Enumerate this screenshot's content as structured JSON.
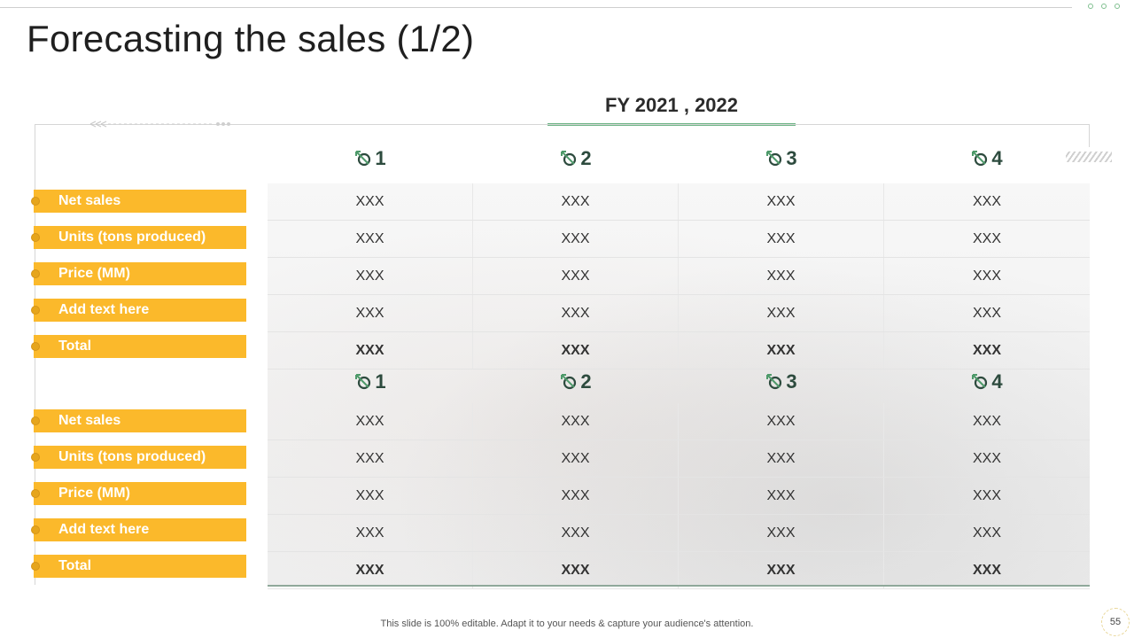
{
  "title": "Forecasting the sales (1/2)",
  "fy_label": "FY 2021 , 2022",
  "quarters": [
    "1",
    "2",
    "3",
    "4"
  ],
  "table1": {
    "labels": [
      "Net sales",
      "Units (tons produced)",
      "Price (MM)",
      "Add text here",
      "Total"
    ],
    "rows": [
      [
        "XXX",
        "XXX",
        "XXX",
        "XXX"
      ],
      [
        "XXX",
        "XXX",
        "XXX",
        "XXX"
      ],
      [
        "XXX",
        "XXX",
        "XXX",
        "XXX"
      ],
      [
        "XXX",
        "XXX",
        "XXX",
        "XXX"
      ],
      [
        "XXX",
        "XXX",
        "XXX",
        "XXX"
      ]
    ]
  },
  "table2": {
    "labels": [
      "Net sales",
      "Units (tons produced)",
      "Price (MM)",
      "Add text here",
      "Total"
    ],
    "rows": [
      [
        "XXX",
        "XXX",
        "XXX",
        "XXX"
      ],
      [
        "XXX",
        "XXX",
        "XXX",
        "XXX"
      ],
      [
        "XXX",
        "XXX",
        "XXX",
        "XXX"
      ],
      [
        "XXX",
        "XXX",
        "XXX",
        "XXX"
      ],
      [
        "XXX",
        "XXX",
        "XXX",
        "XXX"
      ]
    ]
  },
  "footer": "This slide is 100% editable. Adapt it to your needs & capture your audience's attention.",
  "page_number": "55",
  "colors": {
    "label_bg": "#fbb92b",
    "accent_green": "#6db486",
    "quarter_text": "#2d4b3e"
  },
  "icons": {
    "quarter": "arrow-target-icon"
  }
}
